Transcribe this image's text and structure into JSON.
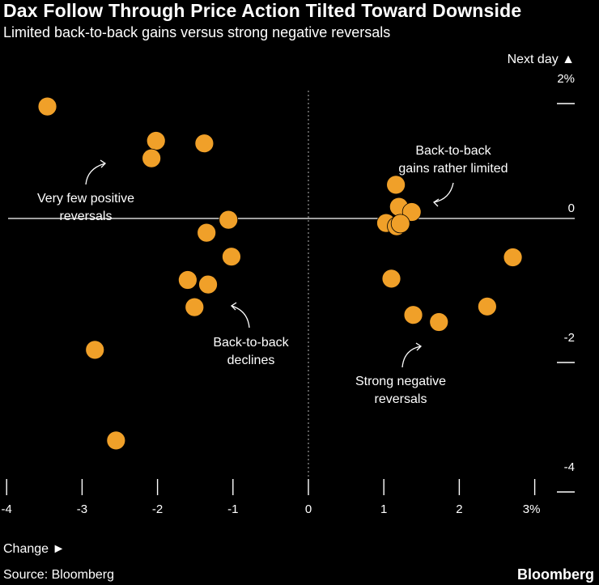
{
  "header": {
    "title": "Dax Follow Through Price Action Tilted Toward Downside",
    "subtitle": "Limited back-to-back gains versus strong negative reversals"
  },
  "footer": {
    "source": "Source: Bloomberg",
    "brand": "Bloomberg"
  },
  "colors": {
    "background": "#000000",
    "point": "#f0a029",
    "text": "#ffffff",
    "axis": "#ffffff"
  },
  "chart_data": {
    "type": "scatter",
    "xlabel": "Change ►",
    "ylabel": "Next day ▲",
    "xlim": [
      -4,
      3
    ],
    "ylim": [
      -4,
      2
    ],
    "x_ticks": [
      {
        "value": -4,
        "label": "-4"
      },
      {
        "value": -3,
        "label": "-3"
      },
      {
        "value": -2,
        "label": "-2"
      },
      {
        "value": -1,
        "label": "-1"
      },
      {
        "value": 0,
        "label": "0"
      },
      {
        "value": 1,
        "label": "1"
      },
      {
        "value": 2,
        "label": "2"
      },
      {
        "value": 3,
        "label": "3%"
      }
    ],
    "y_ticks": [
      {
        "value": 2,
        "label": "2%"
      },
      {
        "value": 0,
        "label": "0"
      },
      {
        "value": -2,
        "label": "-2"
      },
      {
        "value": -4,
        "label": "-4"
      }
    ],
    "points": [
      {
        "x": -3.46,
        "y": 1.73
      },
      {
        "x": -2.02,
        "y": 1.2
      },
      {
        "x": -2.08,
        "y": 0.93
      },
      {
        "x": -1.38,
        "y": 1.16
      },
      {
        "x": -1.06,
        "y": -0.02
      },
      {
        "x": -1.35,
        "y": -0.22
      },
      {
        "x": -1.02,
        "y": -0.59
      },
      {
        "x": -1.6,
        "y": -0.95
      },
      {
        "x": -1.33,
        "y": -1.02
      },
      {
        "x": -1.51,
        "y": -1.37
      },
      {
        "x": -2.83,
        "y": -2.03
      },
      {
        "x": -2.55,
        "y": -3.43
      },
      {
        "x": 1.16,
        "y": 0.52
      },
      {
        "x": 1.2,
        "y": 0.18
      },
      {
        "x": 1.37,
        "y": 0.1
      },
      {
        "x": 1.03,
        "y": -0.07
      },
      {
        "x": 1.17,
        "y": -0.12
      },
      {
        "x": 1.22,
        "y": -0.08
      },
      {
        "x": 1.1,
        "y": -0.93
      },
      {
        "x": 2.71,
        "y": -0.6
      },
      {
        "x": 2.37,
        "y": -1.36
      },
      {
        "x": 1.39,
        "y": -1.49
      },
      {
        "x": 1.73,
        "y": -1.6
      }
    ],
    "annotations": [
      {
        "id": "very-few-positive",
        "lines": [
          "Very few positive",
          "reversals"
        ]
      },
      {
        "id": "back-to-back-gains",
        "lines": [
          "Back-to-back",
          "gains rather limited"
        ]
      },
      {
        "id": "back-to-back-declines",
        "lines": [
          "Back-to-back",
          "declines"
        ]
      },
      {
        "id": "strong-negative",
        "lines": [
          "Strong negative",
          "reversals"
        ]
      }
    ],
    "grid": false,
    "zero_lines": true
  }
}
